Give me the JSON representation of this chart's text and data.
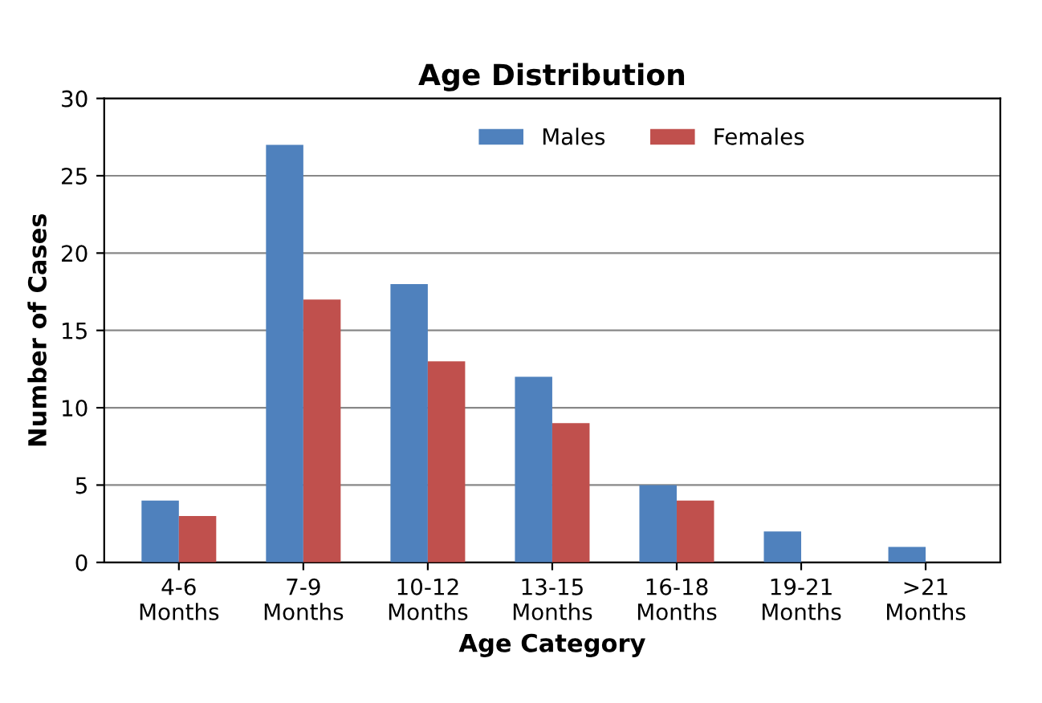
{
  "chart_data": {
    "type": "bar",
    "title": "Age Distribution",
    "xlabel": "Age Category",
    "ylabel": "Number of Cases",
    "categories": [
      "4-6\nMonths",
      "7-9\nMonths",
      "10-12\nMonths",
      "13-15\nMonths",
      "16-18\nMonths",
      "19-21\nMonths",
      ">21\nMonths"
    ],
    "series": [
      {
        "name": "Males",
        "color": "#4f81bd",
        "values": [
          4,
          27,
          18,
          12,
          5,
          2,
          1
        ]
      },
      {
        "name": "Females",
        "color": "#c0504d",
        "values": [
          3,
          17,
          13,
          9,
          4,
          0,
          0
        ]
      }
    ],
    "ylim": [
      0,
      30
    ],
    "yticks": [
      0,
      5,
      10,
      15,
      20,
      25,
      30
    ],
    "grid": "y",
    "legend": "top"
  }
}
